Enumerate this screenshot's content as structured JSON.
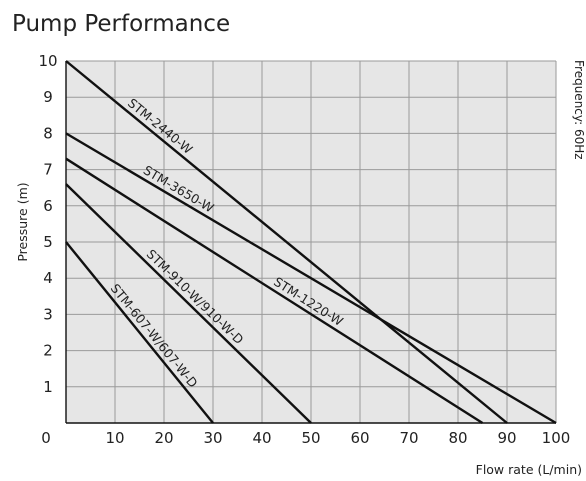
{
  "chart_data": {
    "type": "line",
    "title": "Pump Performance",
    "xlabel": "Flow rate (L/min)",
    "ylabel": "Pressure (m)",
    "side_note": "Frequency: 60Hz",
    "xlim": [
      0,
      100
    ],
    "ylim": [
      0,
      10
    ],
    "x_ticks": [
      0,
      10,
      20,
      30,
      40,
      50,
      60,
      70,
      80,
      90,
      100
    ],
    "y_ticks": [
      1,
      2,
      3,
      4,
      5,
      6,
      7,
      8,
      9,
      10
    ],
    "grid": true,
    "background_color": "#e6e6e6",
    "grid_color": "#9a9a9a",
    "line_color": "#111111",
    "series": [
      {
        "name": "STM-2440-W",
        "x": [
          0,
          90
        ],
        "y": [
          10,
          0
        ]
      },
      {
        "name": "STM-3650-W",
        "x": [
          0,
          100
        ],
        "y": [
          8,
          0
        ]
      },
      {
        "name": "STM-1220-W",
        "x": [
          0,
          85
        ],
        "y": [
          7.3,
          0
        ]
      },
      {
        "name": "STM-910-W/910-W-D",
        "x": [
          0,
          50
        ],
        "y": [
          6.6,
          0
        ]
      },
      {
        "name": "STM-607-W/607-W-D",
        "x": [
          0,
          30
        ],
        "y": [
          5,
          0
        ]
      }
    ]
  }
}
